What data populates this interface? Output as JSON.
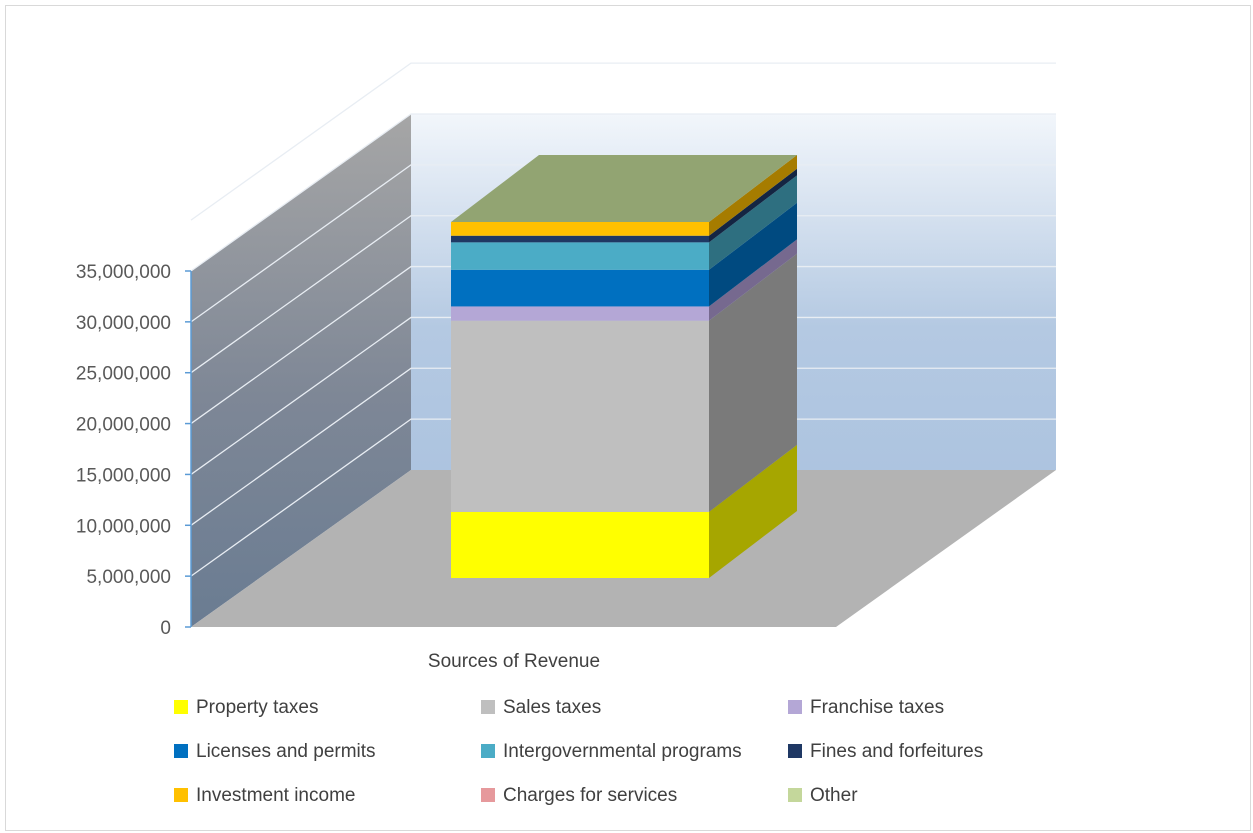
{
  "chart_data": {
    "type": "bar",
    "subtype": "3d-stacked-column",
    "title": "",
    "xlabel": "",
    "ylabel": "",
    "categories": [
      "Sources of Revenue"
    ],
    "ylim": [
      0,
      35000000
    ],
    "yticks": [
      0,
      5000000,
      10000000,
      15000000,
      20000000,
      25000000,
      30000000,
      35000000
    ],
    "ytick_labels": [
      "0",
      "5,000,000",
      "10,000,000",
      "15,000,000",
      "20,000,000",
      "25,000,000",
      "30,000,000",
      "35,000,000"
    ],
    "grid": true,
    "legend_position": "bottom",
    "series": [
      {
        "name": "Property taxes",
        "values": [
          6500000
        ],
        "color": "#FFFF00",
        "side_color": "#A6A600"
      },
      {
        "name": "Sales taxes",
        "values": [
          18800000
        ],
        "color": "#BFBFBF",
        "side_color": "#7A7A7A"
      },
      {
        "name": "Franchise taxes",
        "values": [
          1400000
        ],
        "color": "#B4A7D6",
        "side_color": "#76698F"
      },
      {
        "name": "Licenses and permits",
        "values": [
          3600000
        ],
        "color": "#0070C0",
        "side_color": "#004A80"
      },
      {
        "name": "Intergovernmental programs",
        "values": [
          2700000
        ],
        "color": "#4BACC6",
        "side_color": "#2E6F80"
      },
      {
        "name": "Fines and forfeitures",
        "values": [
          650000
        ],
        "color": "#1F3864",
        "side_color": "#142542"
      },
      {
        "name": "Investment income",
        "values": [
          1350000
        ],
        "color": "#FFC000",
        "side_color": "#A67C00"
      },
      {
        "name": "Charges for services",
        "values": [
          0
        ],
        "color": "#E6999C",
        "side_color": "#9A6466"
      },
      {
        "name": "Other",
        "values": [
          0
        ],
        "color": "#C4D79B",
        "side_color": "#8A9A6A",
        "top_color": "#92A472"
      }
    ]
  }
}
